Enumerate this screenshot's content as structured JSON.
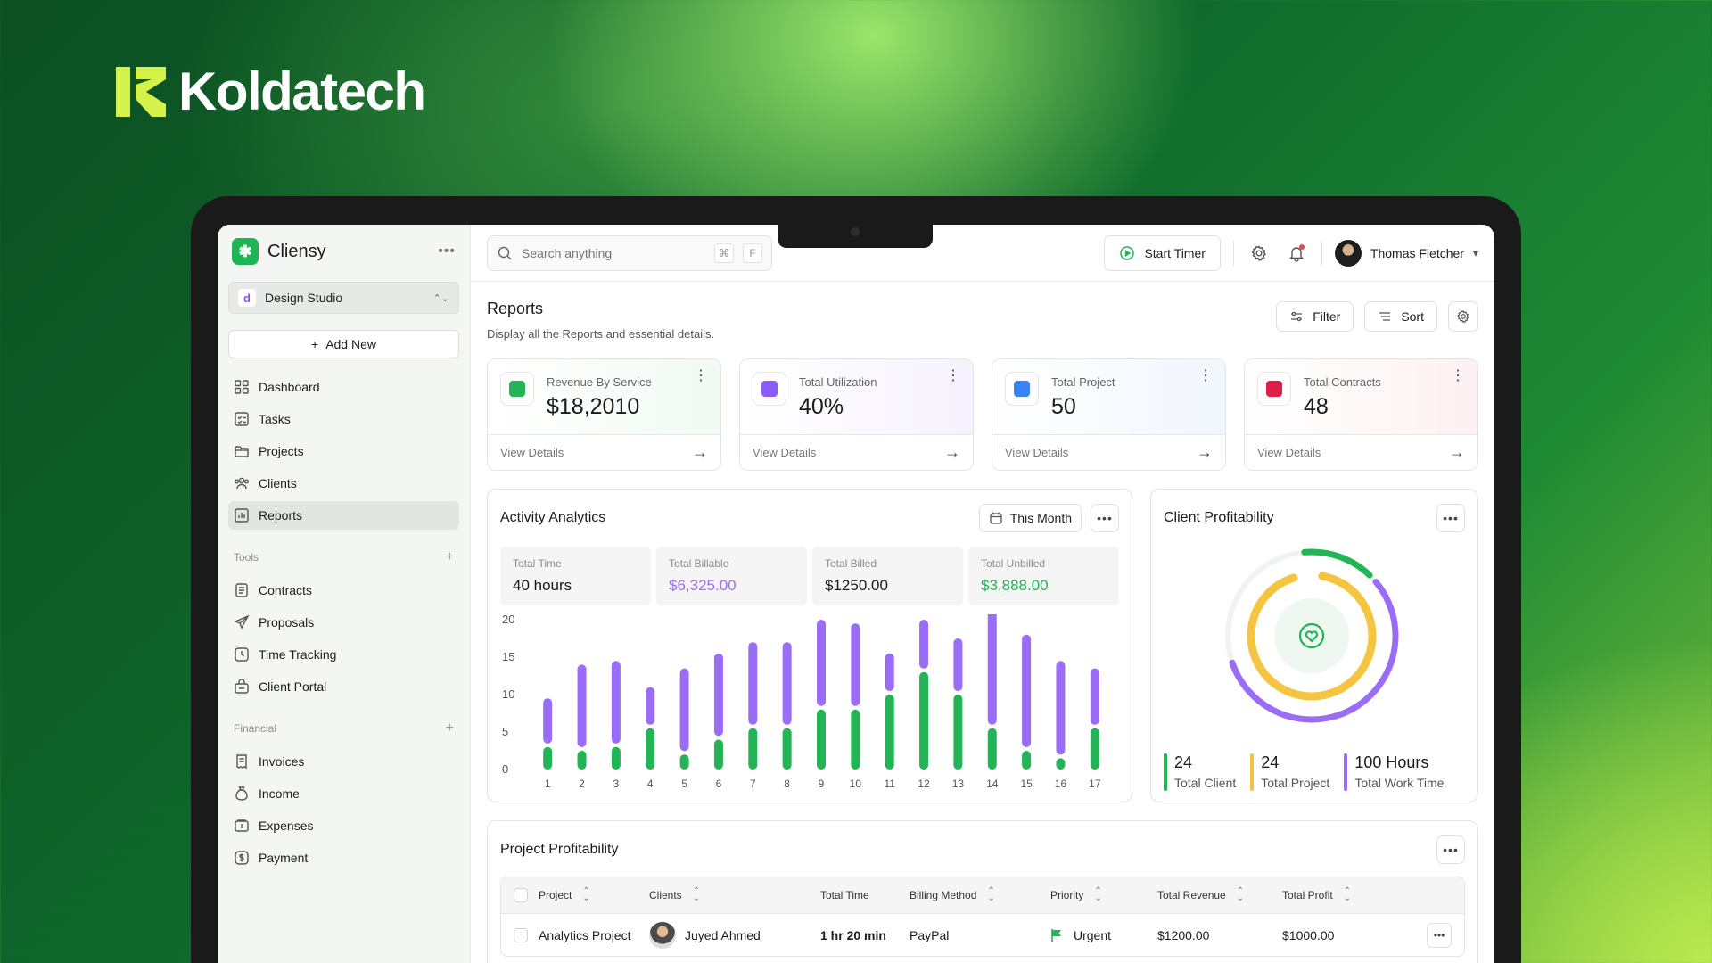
{
  "brand": {
    "name": "Koldatech"
  },
  "app": {
    "name": "Cliensy",
    "logo_glyph": "✱"
  },
  "workspace": {
    "badge": "d",
    "name": "Design Studio"
  },
  "sidebar": {
    "add_new": "Add New",
    "main_items": [
      {
        "label": "Dashboard",
        "icon": "grid-icon"
      },
      {
        "label": "Tasks",
        "icon": "tasks-icon"
      },
      {
        "label": "Projects",
        "icon": "folder-icon"
      },
      {
        "label": "Clients",
        "icon": "users-icon"
      },
      {
        "label": "Reports",
        "icon": "chart-icon",
        "active": true
      }
    ],
    "tools_label": "Tools",
    "tools_items": [
      {
        "label": "Contracts",
        "icon": "document-icon"
      },
      {
        "label": "Proposals",
        "icon": "send-icon"
      },
      {
        "label": "Time Tracking",
        "icon": "clock-icon"
      },
      {
        "label": "Client Portal",
        "icon": "portal-icon"
      }
    ],
    "financial_label": "Financial",
    "financial_items": [
      {
        "label": "Invoices",
        "icon": "invoice-icon"
      },
      {
        "label": "Income",
        "icon": "money-bag-icon"
      },
      {
        "label": "Expenses",
        "icon": "expenses-icon"
      },
      {
        "label": "Payment",
        "icon": "dollar-circle-icon"
      }
    ]
  },
  "topbar": {
    "search_placeholder": "Search anything",
    "kbd_cmd": "⌘",
    "kbd_key": "F",
    "start_timer": "Start Timer",
    "user_name": "Thomas Fletcher"
  },
  "page": {
    "title": "Reports",
    "subtitle": "Display all the Reports and essential details.",
    "filter": "Filter",
    "sort": "Sort"
  },
  "stats": [
    {
      "label": "Revenue By Service",
      "value": "$18,2010",
      "link": "View Details",
      "icon_color": "#22b455",
      "tint": "#f1faf3"
    },
    {
      "label": "Total Utilization",
      "value": "40%",
      "link": "View Details",
      "icon_color": "#8b5cf6",
      "tint": "#f6f2fd"
    },
    {
      "label": "Total Project",
      "value": "50",
      "link": "View Details",
      "icon_color": "#3b82f6",
      "tint": "#f1f6fd"
    },
    {
      "label": "Total Contracts",
      "value": "48",
      "link": "View Details",
      "icon_color": "#e11d48",
      "tint": "#fdf1f2"
    }
  ],
  "activity": {
    "title": "Activity Analytics",
    "period": "This Month",
    "metrics": [
      {
        "label": "Total Time",
        "value": "40 hours",
        "tone": ""
      },
      {
        "label": "Total Billable",
        "value": "$6,325.00",
        "tone": "purple"
      },
      {
        "label": "Total Billed",
        "value": "$1250.00",
        "tone": ""
      },
      {
        "label": "Total Unbilled",
        "value": "$3,888.00",
        "tone": "green"
      }
    ]
  },
  "chart_data": {
    "type": "bar",
    "stacked": true,
    "categories": [
      "1",
      "2",
      "3",
      "4",
      "5",
      "6",
      "7",
      "8",
      "9",
      "10",
      "11",
      "12",
      "13",
      "14",
      "15",
      "16",
      "17"
    ],
    "y_ticks": [
      0,
      5,
      10,
      15,
      20
    ],
    "ylim": [
      0,
      20
    ],
    "series": [
      {
        "color": "#22b455",
        "values": [
          3,
          2.5,
          3,
          5.5,
          2,
          4,
          5.5,
          5.5,
          8,
          8,
          10,
          13,
          10,
          5.5,
          2.5,
          1.5,
          5.5
        ]
      },
      {
        "color": "#9b6cf5",
        "values": [
          6.5,
          11.5,
          11.5,
          5.5,
          11.5,
          11.5,
          11.5,
          11.5,
          12,
          11.5,
          5.5,
          7,
          7.5,
          17,
          15.5,
          13,
          8
        ]
      }
    ],
    "grid": false,
    "legend": "none"
  },
  "client_profit": {
    "title": "Client Profitability",
    "legend": [
      {
        "value": "24",
        "label": "Total Client",
        "color": "#22b455"
      },
      {
        "value": "24",
        "label": "Total Project",
        "color": "#f5c542"
      },
      {
        "value": "100 Hours",
        "label": "Total Work Time",
        "color": "#9b6cf5"
      }
    ]
  },
  "projects": {
    "title": "Project Profitability",
    "columns": [
      "Project",
      "Clients",
      "Total Time",
      "Billing Method",
      "Priority",
      "Total Revenue",
      "Total Profit"
    ],
    "rows": [
      {
        "project": "Analytics Project",
        "client": "Juyed Ahmed",
        "time": "1 hr 20 min",
        "billing": "PayPal",
        "priority": "Urgent",
        "revenue": "$1200.00",
        "profit": "$1000.00"
      }
    ]
  }
}
